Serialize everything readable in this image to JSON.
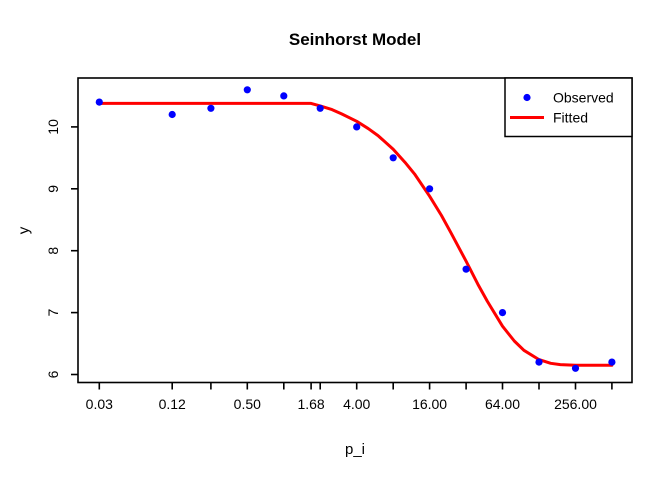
{
  "chart_data": {
    "type": "scatter",
    "title": "Seinhorst Model",
    "xlabel": "p_i",
    "ylabel": "y",
    "x_scale": "log2",
    "grid": false,
    "legend_position": "top-right",
    "xlim": [
      0.02,
      750
    ],
    "ylim": [
      5.87,
      10.79
    ],
    "y_ticks": [
      6,
      7,
      8,
      9,
      10
    ],
    "x_ticks": [
      {
        "v": 0.03,
        "label": "0.03"
      },
      {
        "v": 0.12,
        "label": "0.12"
      },
      {
        "v": 0.25,
        "label": ""
      },
      {
        "v": 0.5,
        "label": "0.50"
      },
      {
        "v": 1,
        "label": ""
      },
      {
        "v": 1.68,
        "label": "1.68"
      },
      {
        "v": 2,
        "label": ""
      },
      {
        "v": 4,
        "label": "4.00"
      },
      {
        "v": 8,
        "label": ""
      },
      {
        "v": 16,
        "label": "16.00"
      },
      {
        "v": 32,
        "label": ""
      },
      {
        "v": 64,
        "label": "64.00"
      },
      {
        "v": 128,
        "label": ""
      },
      {
        "v": 256,
        "label": "256.00"
      },
      {
        "v": 512,
        "label": ""
      }
    ],
    "series": [
      {
        "name": "Observed",
        "type": "scatter",
        "marker": "filled-circle",
        "color": "#0000ff",
        "x": [
          0.03,
          0.12,
          0.25,
          0.5,
          1,
          2,
          4,
          8,
          16,
          32,
          64,
          128,
          256,
          512
        ],
        "y": [
          10.4,
          10.2,
          10.3,
          10.6,
          10.5,
          10.3,
          10.0,
          9.5,
          9.0,
          7.7,
          7.0,
          6.2,
          6.1,
          6.2
        ]
      },
      {
        "name": "Fitted",
        "type": "line",
        "color": "#ff0000",
        "x": [
          0.03,
          1.68,
          2,
          2.5,
          3,
          4,
          5,
          6,
          8,
          10,
          12,
          16,
          20,
          24,
          32,
          40,
          48,
          64,
          80,
          96,
          128,
          160,
          192,
          256,
          384,
          512
        ],
        "y": [
          10.38,
          10.38,
          10.34,
          10.28,
          10.21,
          10.09,
          9.97,
          9.86,
          9.64,
          9.43,
          9.24,
          8.88,
          8.57,
          8.29,
          7.83,
          7.46,
          7.18,
          6.78,
          6.54,
          6.39,
          6.24,
          6.18,
          6.16,
          6.15,
          6.15,
          6.15
        ]
      }
    ],
    "colors": {
      "observed": "#0000ff",
      "fitted": "#ff0000",
      "axis": "#000000",
      "background": "#ffffff"
    }
  }
}
